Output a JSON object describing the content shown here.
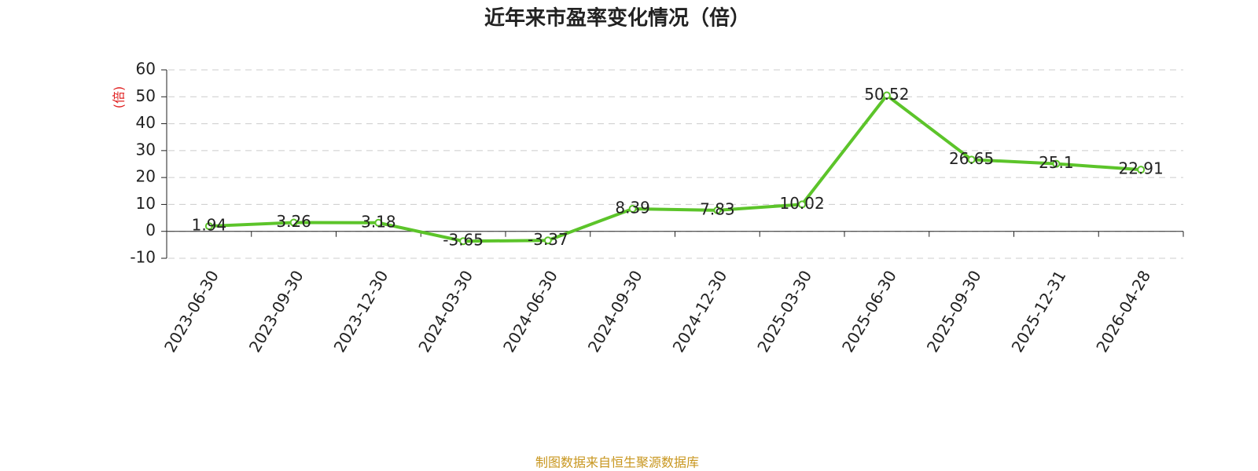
{
  "chart_data": {
    "type": "line",
    "title": "近年来市盈率变化情况（倍）",
    "y_label": "(倍)",
    "source": "制图数据来自恒生聚源数据库",
    "categories": [
      "2023-06-30",
      "2023-09-30",
      "2023-12-30",
      "2024-03-30",
      "2024-06-30",
      "2024-09-30",
      "2024-12-30",
      "2025-03-30",
      "2025-06-30",
      "2025-09-30",
      "2025-12-31",
      "2026-04-28"
    ],
    "series": [
      {
        "name": "市盈率",
        "color": "#5cc42a",
        "values": [
          1.94,
          3.26,
          3.18,
          -3.65,
          -3.37,
          8.39,
          7.83,
          10.02,
          50.52,
          26.65,
          25.1,
          22.91
        ]
      }
    ],
    "ylim": [
      -10,
      60
    ],
    "yticks": [
      -10,
      0,
      10,
      20,
      30,
      40,
      50,
      60
    ],
    "grid": true
  }
}
